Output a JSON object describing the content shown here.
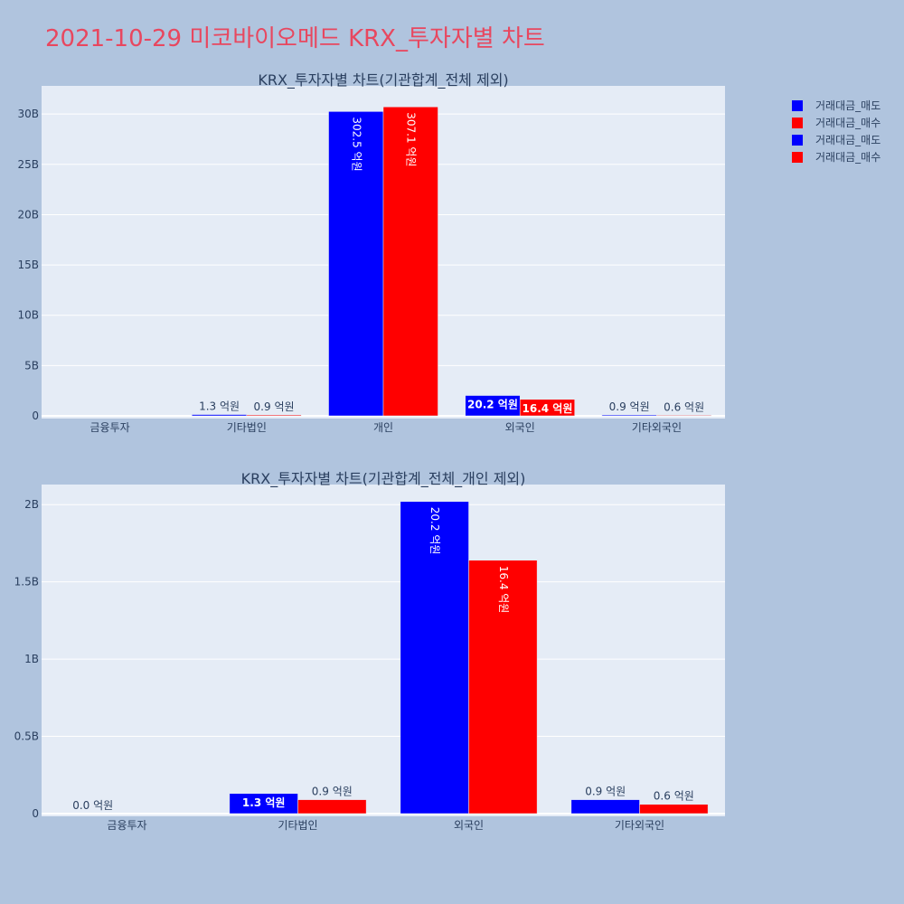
{
  "title": "2021-10-29 미코바이오메드 KRX_투자자별 차트",
  "colors": {
    "sell": "#0000ff",
    "buy": "#ff0000",
    "plot_bg": "#e5ecf6",
    "page_bg": "#b0c4de"
  },
  "legend": [
    {
      "label": "거래대금_매도",
      "color": "#0000ff"
    },
    {
      "label": "거래대금_매수",
      "color": "#ff0000"
    },
    {
      "label": "거래대금_매도",
      "color": "#0000ff"
    },
    {
      "label": "거래대금_매수",
      "color": "#ff0000"
    }
  ],
  "chart_data": [
    {
      "type": "bar",
      "title": "KRX_투자자별 차트(기관합계_전체 제외)",
      "categories": [
        "금융투자",
        "기타법인",
        "개인",
        "외국인",
        "기타외국인"
      ],
      "series": [
        {
          "name": "거래대금_매도",
          "values": [
            0,
            130000000,
            30250000000,
            2020000000,
            90000000
          ],
          "labels": [
            "",
            "1.3 억원",
            "302.5 억원",
            "20.2 억원",
            "0.9 억원"
          ]
        },
        {
          "name": "거래대금_매수",
          "values": [
            0,
            90000000,
            30710000000,
            1640000000,
            60000000
          ],
          "labels": [
            "",
            "0.9 억원",
            "307.1 억원",
            "16.4 억원",
            "0.6 억원"
          ]
        }
      ],
      "yticks": [
        0,
        5000000000,
        10000000000,
        15000000000,
        20000000000,
        25000000000,
        30000000000
      ],
      "ytick_labels": [
        "0",
        "5B",
        "10B",
        "15B",
        "20B",
        "25B",
        "30B"
      ],
      "ylim": [
        0,
        32800000000
      ]
    },
    {
      "type": "bar",
      "title": "KRX_투자자별 차트(기관합계_전체_개인 제외)",
      "categories": [
        "금융투자",
        "기타법인",
        "외국인",
        "기타외국인"
      ],
      "series": [
        {
          "name": "거래대금_매도",
          "values": [
            0,
            130000000,
            2020000000,
            90000000
          ],
          "labels": [
            "0.0 억원",
            "1.3 억원",
            "20.2 억원",
            "0.9 억원"
          ]
        },
        {
          "name": "거래대금_매수",
          "values": [
            0,
            90000000,
            1640000000,
            60000000
          ],
          "labels": [
            "",
            "0.9 억원",
            "16.4 억원",
            "0.6 억원"
          ]
        }
      ],
      "yticks": [
        0,
        500000000,
        1000000000,
        1500000000,
        2000000000
      ],
      "ytick_labels": [
        "0",
        "0.5B",
        "1B",
        "1.5B",
        "2B"
      ],
      "ylim": [
        0,
        2130000000
      ]
    }
  ]
}
